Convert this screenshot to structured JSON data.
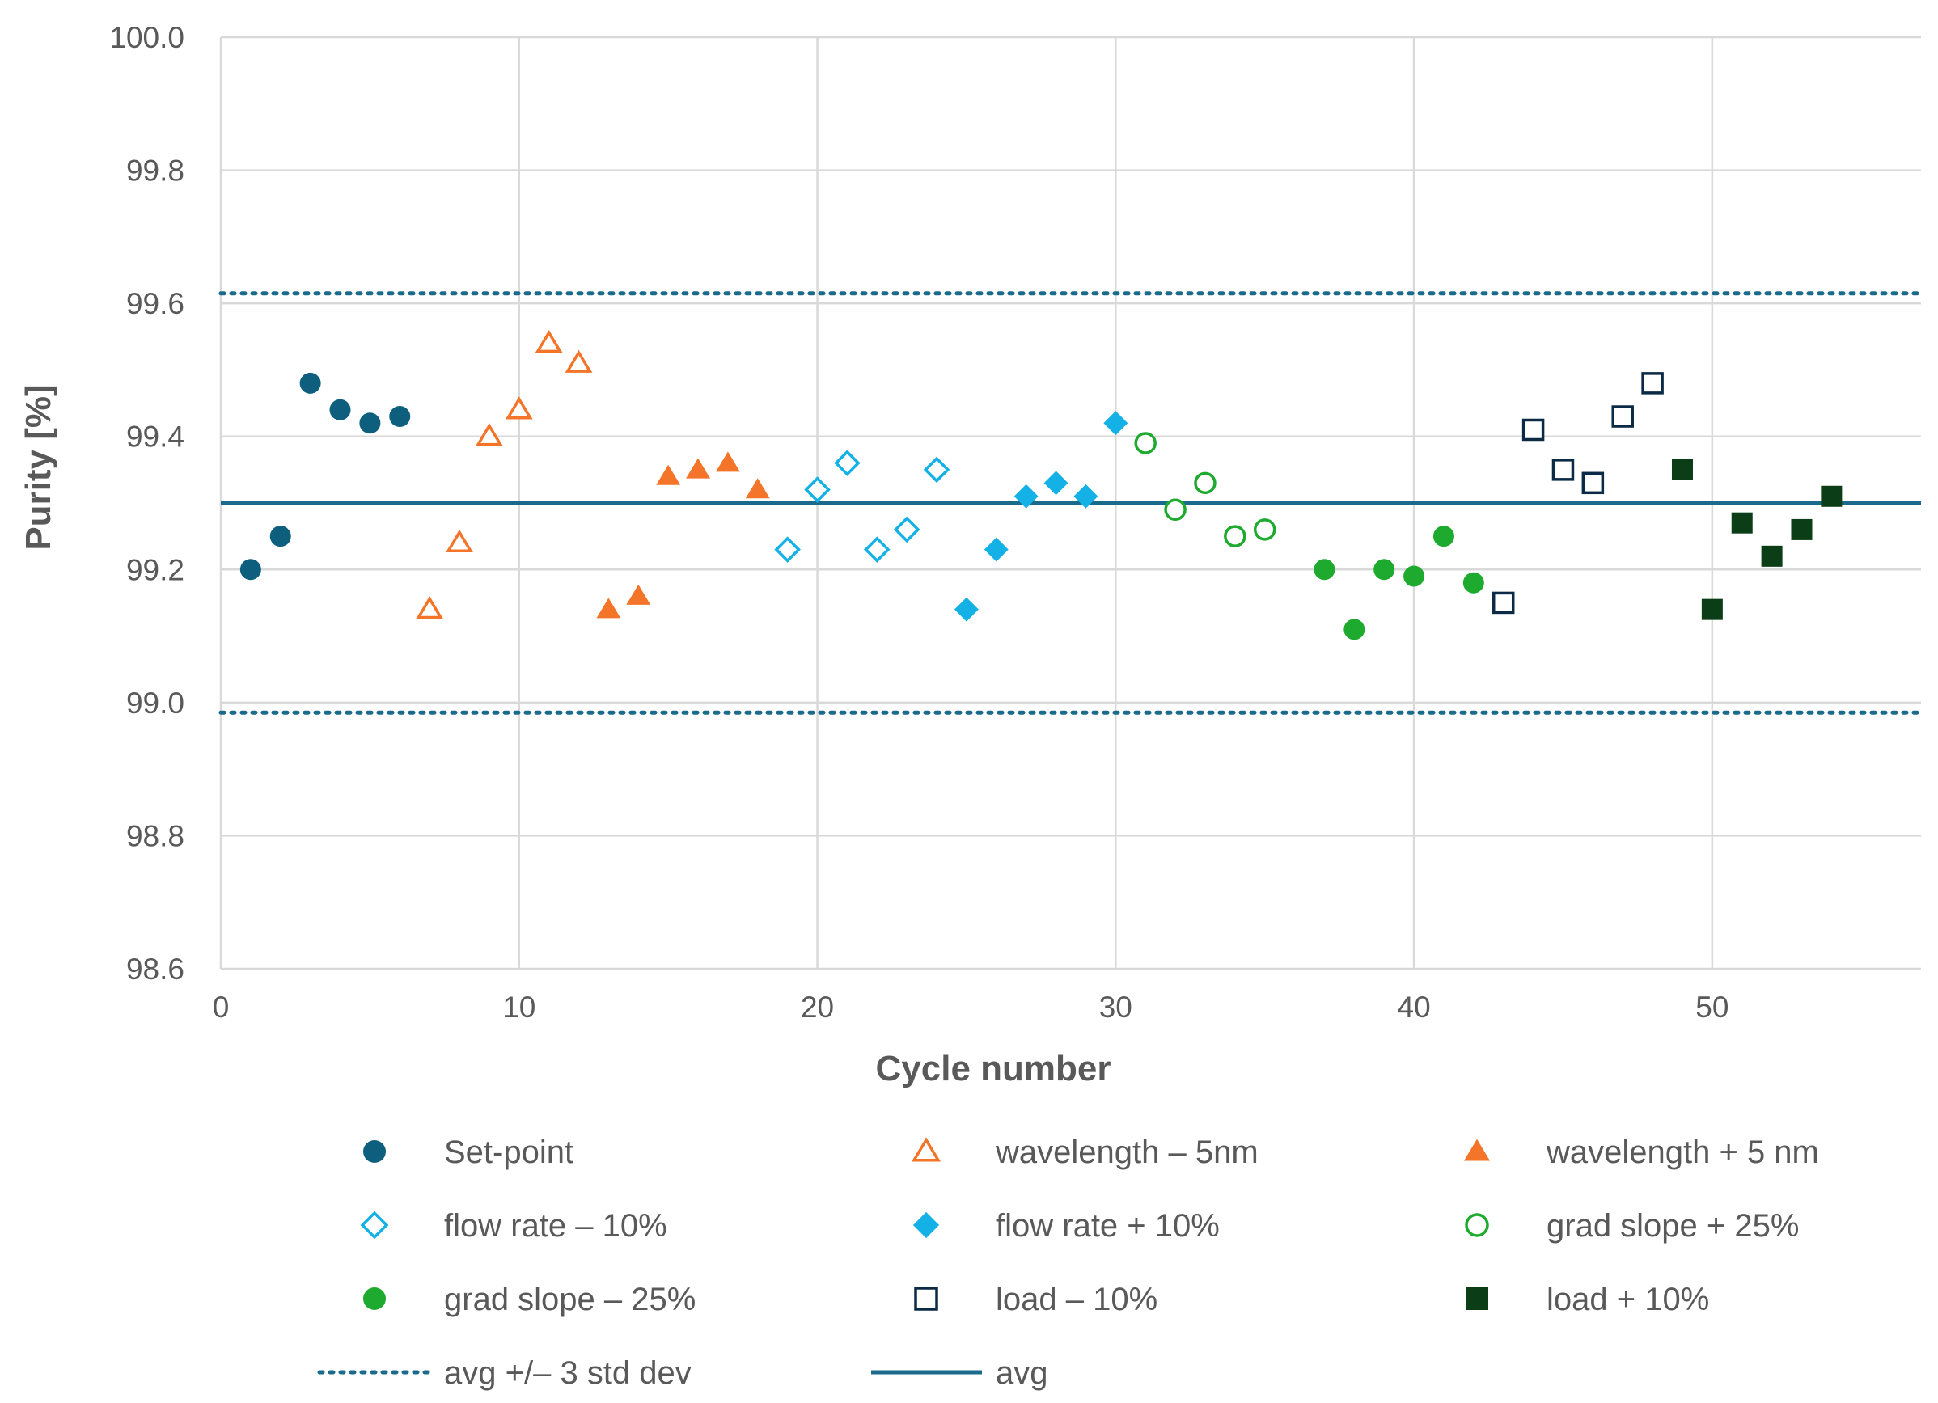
{
  "chart_data": {
    "type": "scatter",
    "title": "",
    "xlabel": "Cycle number",
    "ylabel": "Purity [%]",
    "xlim": [
      0,
      57
    ],
    "ylim": [
      98.6,
      100.0
    ],
    "xticks": [
      0,
      10,
      20,
      30,
      40,
      50
    ],
    "xtick_labels": [
      "0",
      "10",
      "20",
      "30",
      "40",
      "50"
    ],
    "yticks": [
      98.6,
      98.8,
      99.0,
      99.2,
      99.4,
      99.6,
      99.8,
      100.0
    ],
    "ytick_labels": [
      "98.6",
      "98.8",
      "99.0",
      "99.2",
      "99.4",
      "99.6",
      "99.8",
      "100.0"
    ],
    "grid": true,
    "legend_position": "bottom",
    "series": [
      {
        "name": "Set-point",
        "marker": "circle",
        "filled": true,
        "color": "#0E5F7E",
        "x": [
          1,
          2,
          3,
          4,
          5,
          6
        ],
        "y": [
          99.2,
          99.25,
          99.48,
          99.44,
          99.42,
          99.43
        ]
      },
      {
        "name": "wavelength – 5nm",
        "marker": "triangle",
        "filled": false,
        "color": "#F4752A",
        "x": [
          7,
          8,
          9,
          10,
          11,
          12
        ],
        "y": [
          99.14,
          99.24,
          99.4,
          99.44,
          99.54,
          99.51
        ]
      },
      {
        "name": "wavelength + 5 nm",
        "marker": "triangle",
        "filled": true,
        "color": "#F4752A",
        "x": [
          13,
          14,
          15,
          16,
          17,
          18
        ],
        "y": [
          99.14,
          99.16,
          99.34,
          99.35,
          99.36,
          99.32
        ]
      },
      {
        "name": "flow rate – 10%",
        "marker": "diamond",
        "filled": false,
        "color": "#13B1E6",
        "x": [
          19,
          20,
          21,
          22,
          23,
          24
        ],
        "y": [
          99.23,
          99.32,
          99.36,
          99.23,
          99.26,
          99.35
        ]
      },
      {
        "name": "flow rate + 10%",
        "marker": "diamond",
        "filled": true,
        "color": "#13B1E6",
        "x": [
          25,
          26,
          27,
          28,
          29,
          30
        ],
        "y": [
          99.14,
          99.23,
          99.31,
          99.33,
          99.31,
          99.42
        ]
      },
      {
        "name": "grad slope + 25%",
        "marker": "circle",
        "filled": false,
        "color": "#1EAA2E",
        "x": [
          31,
          32,
          33,
          34,
          35
        ],
        "y": [
          99.39,
          99.29,
          99.33,
          99.25,
          99.26
        ]
      },
      {
        "name": "grad slope – 25%",
        "marker": "circle",
        "filled": true,
        "color": "#1EAA2E",
        "x": [
          37,
          38,
          39,
          40,
          41,
          42
        ],
        "y": [
          99.2,
          99.11,
          99.2,
          99.19,
          99.25,
          99.18
        ]
      },
      {
        "name": "load – 10%",
        "marker": "square",
        "filled": false,
        "color": "#0B2A45",
        "x": [
          43,
          44,
          45,
          46,
          47,
          48
        ],
        "y": [
          99.15,
          99.41,
          99.35,
          99.33,
          99.43,
          99.48
        ]
      },
      {
        "name": "load + 10%",
        "marker": "square",
        "filled": true,
        "color": "#0B3D17",
        "x": [
          49,
          50,
          51,
          52,
          53,
          54
        ],
        "y": [
          99.35,
          99.14,
          99.27,
          99.22,
          99.26,
          99.31
        ]
      }
    ],
    "reference_lines": [
      {
        "name": "avg",
        "style": "solid",
        "color": "#1A6A8C",
        "y": 99.3
      },
      {
        "name": "avg +/– 3 std dev",
        "style": "dotted",
        "color": "#1A6A8C",
        "y": [
          99.615,
          98.985
        ]
      }
    ],
    "legend": [
      "Set-point",
      "wavelength – 5nm",
      "wavelength + 5 nm",
      "flow rate – 10%",
      "flow rate + 10%",
      "grad slope + 25%",
      "grad slope – 25%",
      "load – 10%",
      "load + 10%",
      "avg +/– 3 std dev",
      "avg"
    ]
  }
}
